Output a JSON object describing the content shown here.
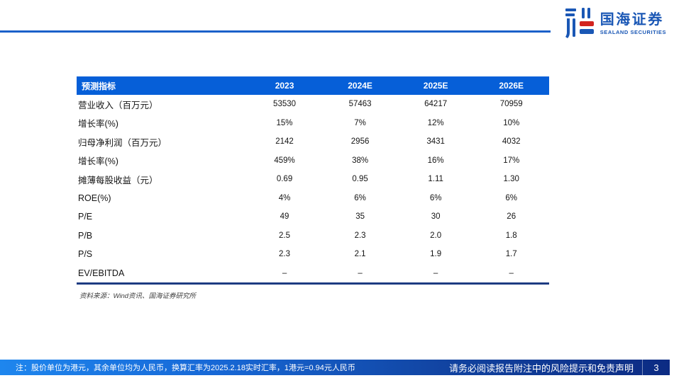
{
  "logo": {
    "name_cn": "国海证券",
    "name_en": "SEALAND SECURITIES"
  },
  "table": {
    "header": [
      "预测指标",
      "2023",
      "2024E",
      "2025E",
      "2026E"
    ],
    "rows": [
      {
        "label": "营业收入（百万元）",
        "values": [
          "53530",
          "57463",
          "64217",
          "70959"
        ]
      },
      {
        "label": "增长率(%)",
        "values": [
          "15%",
          "7%",
          "12%",
          "10%"
        ]
      },
      {
        "label": "归母净利润（百万元）",
        "values": [
          "2142",
          "2956",
          "3431",
          "4032"
        ]
      },
      {
        "label": "增长率(%)",
        "values": [
          "459%",
          "38%",
          "16%",
          "17%"
        ]
      },
      {
        "label": "摊薄每股收益（元）",
        "values": [
          "0.69",
          "0.95",
          "1.11",
          "1.30"
        ]
      },
      {
        "label": "ROE(%)",
        "values": [
          "4%",
          "6%",
          "6%",
          "6%"
        ]
      },
      {
        "label": "P/E",
        "values": [
          "49",
          "35",
          "30",
          "26"
        ]
      },
      {
        "label": "P/B",
        "values": [
          "2.5",
          "2.3",
          "2.0",
          "1.8"
        ]
      },
      {
        "label": "P/S",
        "values": [
          "2.3",
          "2.1",
          "1.9",
          "1.7"
        ]
      },
      {
        "label": "EV/EBITDA",
        "values": [
          "–",
          "–",
          "–",
          "–"
        ]
      }
    ],
    "source": "资料来源：Wind资讯、国海证券研究所"
  },
  "footer": {
    "note": "注：股价单位为港元，其余单位均为人民币，换算汇率为2025.2.18实时汇率，1港元=0.94元人民币",
    "disclaimer": "请务必阅读报告附注中的风险提示和免责声明",
    "page_number": "3"
  },
  "colors": {
    "header_blue": "#065fd8",
    "top_rule_blue": "#1b61c9",
    "table_bottom_rule": "#1e3c82",
    "footer_gradient_left": "#1e86ee",
    "footer_gradient_right": "#0c2b83",
    "logo_blue": "#1a57b5",
    "logo_red": "#d2231e"
  }
}
